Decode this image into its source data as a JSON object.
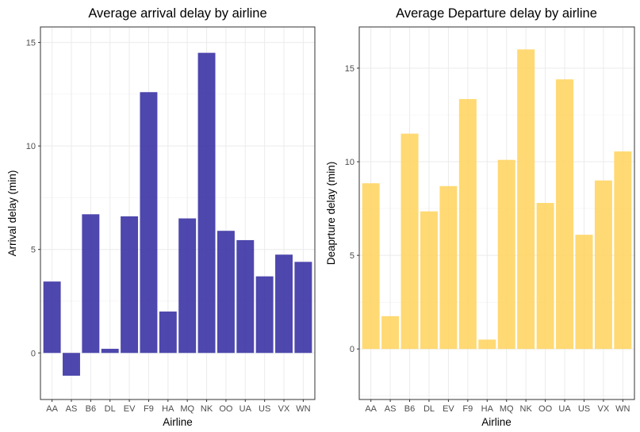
{
  "chart_data": [
    {
      "type": "bar",
      "title": "Average arrival delay by airline",
      "xlabel": "Airline",
      "ylabel": "Arrival delay (min)",
      "categories": [
        "AA",
        "AS",
        "B6",
        "DL",
        "EV",
        "F9",
        "HA",
        "MQ",
        "NK",
        "OO",
        "UA",
        "US",
        "VX",
        "WN"
      ],
      "values": [
        3.45,
        -1.1,
        6.7,
        0.2,
        6.6,
        12.6,
        2.0,
        6.5,
        14.5,
        5.9,
        5.45,
        3.7,
        4.75,
        4.4
      ],
      "yticks": [
        0,
        5,
        10,
        15
      ],
      "ylim": [
        -2.25,
        15.75
      ],
      "color": "#3b33a4",
      "grid": true
    },
    {
      "type": "bar",
      "title": "Average Departure delay by airline",
      "xlabel": "Airline",
      "ylabel": "Deaprture delay (min)",
      "categories": [
        "AA",
        "AS",
        "B6",
        "DL",
        "EV",
        "F9",
        "HA",
        "MQ",
        "NK",
        "OO",
        "UA",
        "US",
        "VX",
        "WN"
      ],
      "values": [
        8.85,
        1.75,
        11.5,
        7.35,
        8.7,
        13.35,
        0.5,
        10.1,
        16.0,
        7.8,
        14.4,
        6.1,
        9.0,
        10.55
      ],
      "yticks": [
        0,
        5,
        10,
        15
      ],
      "ylim": [
        -2.7,
        17.2
      ],
      "color": "#ffd25a",
      "grid": true
    }
  ]
}
